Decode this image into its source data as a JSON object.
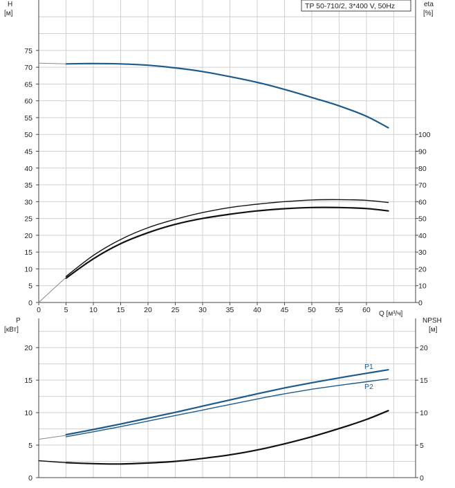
{
  "colors": {
    "head": "#1c5a8c",
    "eta": "#111111",
    "power": "#1c5a8c",
    "npsh": "#111111",
    "grid": "#cfcfcf",
    "frame": "#444444"
  },
  "chart_data": [
    {
      "type": "line",
      "title": "TP 50-710/2, 3*400 V, 50Hz",
      "xlabel": "Q [м³/ч]",
      "ylabel_left": [
        "H",
        "[м]"
      ],
      "ylabel_right": [
        "eta",
        "[%]"
      ],
      "xlim": [
        0,
        69
      ],
      "ylim_left": [
        0,
        90
      ],
      "ylim_right_visible": [
        0,
        100
      ],
      "grid": true,
      "x_ticks": [
        0,
        5,
        10,
        15,
        20,
        25,
        30,
        35,
        40,
        45,
        50,
        55,
        60
      ],
      "y_ticks_left": [
        0,
        5,
        10,
        15,
        20,
        25,
        30,
        35,
        40,
        45,
        50,
        55,
        60,
        65,
        70,
        75
      ],
      "y_ticks_right": [
        0,
        10,
        20,
        30,
        40,
        50,
        60,
        70,
        80,
        90,
        100
      ],
      "series": [
        {
          "role": "head",
          "unit": "м",
          "color": "#1c5a8c",
          "x": [
            5,
            10,
            15,
            20,
            25,
            30,
            35,
            40,
            45,
            50,
            55,
            60,
            64
          ],
          "y": [
            71,
            71.1,
            71,
            70.6,
            69.8,
            68.7,
            67.2,
            65.5,
            63.4,
            61,
            58.5,
            55.4,
            52
          ]
        },
        {
          "role": "head-extension",
          "unit": "м",
          "color": "#888888",
          "x": [
            0,
            5
          ],
          "y": [
            71.2,
            71
          ]
        },
        {
          "role": "eta-outer",
          "unit": "%",
          "color": "#111111",
          "x": [
            5,
            10,
            15,
            20,
            25,
            30,
            35,
            40,
            45,
            50,
            55,
            60,
            64
          ],
          "y": [
            15.5,
            28,
            37.5,
            44.5,
            49.5,
            53.5,
            56.5,
            58.5,
            60,
            61,
            61.2,
            60.8,
            59.5
          ]
        },
        {
          "role": "eta-inner",
          "unit": "%",
          "color": "#111111",
          "x": [
            5,
            10,
            15,
            20,
            25,
            30,
            35,
            40,
            45,
            50,
            55,
            60,
            64
          ],
          "y": [
            14.5,
            26,
            35,
            41.5,
            46.5,
            50,
            52.5,
            54.5,
            55.8,
            56.5,
            56.5,
            55.9,
            54.5
          ]
        },
        {
          "role": "eta-extension",
          "unit": "%",
          "color": "#888888",
          "x": [
            0,
            2.5,
            5
          ],
          "y": [
            0,
            7.5,
            15
          ]
        }
      ]
    },
    {
      "type": "line",
      "xlabel": "",
      "ylabel_left": [
        "P",
        "[кВт]"
      ],
      "ylabel_right": [
        "NPSH",
        "[м]"
      ],
      "xlim": [
        0,
        69
      ],
      "ylim_left": [
        0,
        24.5
      ],
      "ylim_right": [
        0,
        24.5
      ],
      "grid": true,
      "y_ticks_left": [
        0,
        5,
        10,
        15,
        20
      ],
      "y_ticks_right": [
        0,
        5,
        10,
        15,
        20
      ],
      "series": [
        {
          "name": "P1",
          "unit": "кВт",
          "color": "#1c5a8c",
          "x": [
            5,
            10,
            15,
            20,
            25,
            30,
            35,
            40,
            45,
            50,
            55,
            60,
            64
          ],
          "y": [
            6.6,
            7.4,
            8.25,
            9.15,
            10.05,
            11,
            11.95,
            12.9,
            13.8,
            14.6,
            15.35,
            16.05,
            16.6
          ]
        },
        {
          "name": "P2",
          "unit": "кВт",
          "color": "#1c5a8c",
          "x": [
            5,
            10,
            15,
            20,
            25,
            30,
            35,
            40,
            45,
            50,
            55,
            60,
            64
          ],
          "y": [
            6.3,
            7.05,
            7.85,
            8.7,
            9.55,
            10.4,
            11.25,
            12.1,
            12.9,
            13.6,
            14.2,
            14.75,
            15.2
          ]
        },
        {
          "role": "P-extension",
          "unit": "кВт",
          "color": "#888888",
          "x": [
            0,
            5
          ],
          "y": [
            5.9,
            6.5
          ]
        },
        {
          "role": "NPSH",
          "unit": "м",
          "color": "#111111",
          "x": [
            5,
            10,
            15,
            20,
            25,
            30,
            35,
            40,
            45,
            50,
            55,
            60,
            64
          ],
          "y": [
            2.3,
            2.15,
            2.1,
            2.25,
            2.5,
            2.95,
            3.5,
            4.25,
            5.2,
            6.3,
            7.55,
            8.95,
            10.3
          ]
        },
        {
          "role": "NPSH-extension",
          "unit": "м",
          "color": "#111111",
          "x": [
            0,
            5
          ],
          "y": [
            2.6,
            2.3
          ]
        }
      ]
    }
  ]
}
